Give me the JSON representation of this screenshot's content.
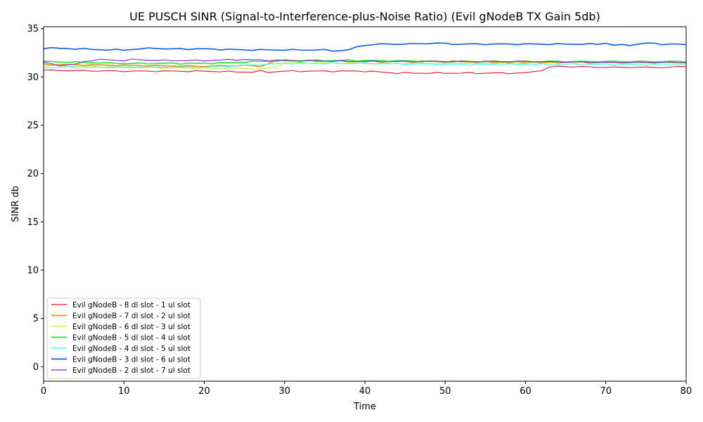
{
  "chart_data": {
    "type": "line",
    "title": "UE PUSCH SINR (Signal-to-Interference-plus-Noise Ratio) (Evil gNodeB TX Gain 5db)",
    "xlabel": "Time",
    "ylabel": "SINR db",
    "xlim": [
      0,
      80
    ],
    "ylim": [
      -1.5,
      35.2
    ],
    "x_ticks": [
      0,
      10,
      20,
      30,
      40,
      50,
      60,
      70,
      80
    ],
    "y_ticks": [
      0,
      5,
      10,
      15,
      20,
      25,
      30,
      35
    ],
    "grid": false,
    "legend_position": "lower-left",
    "series": [
      {
        "name": "Evil gNodeB - 8 dl slot - 1 ul slot",
        "color": "#e8112d",
        "x": [
          0,
          10,
          20,
          26,
          27,
          28,
          30,
          40,
          44,
          50,
          55,
          60,
          62,
          63,
          64,
          70,
          75,
          78,
          80
        ],
        "values": [
          30.7,
          30.6,
          30.6,
          30.5,
          30.6,
          30.5,
          30.6,
          30.6,
          30.4,
          30.4,
          30.4,
          30.4,
          30.7,
          31.0,
          31.1,
          31.0,
          31.0,
          31.0,
          31.1
        ]
      },
      {
        "name": "Evil gNodeB - 7 dl slot - 2 ul slot",
        "color": "#ff8800",
        "x": [
          0,
          10,
          20,
          25,
          27,
          29,
          30,
          40,
          50,
          60,
          70,
          80
        ],
        "values": [
          31.3,
          31.2,
          31.1,
          31.2,
          31.1,
          31.7,
          31.7,
          31.6,
          31.6,
          31.5,
          31.5,
          31.5
        ]
      },
      {
        "name": "Evil gNodeB - 6 dl slot - 3 ul slot",
        "color": "#aaff33",
        "x": [
          0,
          10,
          20,
          25,
          27,
          29,
          30,
          40,
          50,
          60,
          70,
          80
        ],
        "values": [
          31.2,
          31.0,
          30.9,
          30.9,
          30.8,
          31.0,
          31.5,
          31.4,
          31.4,
          31.4,
          31.6,
          31.5
        ]
      },
      {
        "name": "Evil gNodeB - 5 dl slot - 4 ul slot",
        "color": "#1ce830",
        "x": [
          0,
          10,
          20,
          30,
          40,
          50,
          60,
          70,
          80
        ],
        "values": [
          31.6,
          31.4,
          31.4,
          31.7,
          31.7,
          31.6,
          31.6,
          31.6,
          31.6
        ]
      },
      {
        "name": "Evil gNodeB - 4 dl slot - 5 ul slot",
        "color": "#33ffee",
        "x": [
          0,
          10,
          20,
          30,
          40,
          50,
          60,
          70,
          80
        ],
        "values": [
          31.0,
          31.0,
          31.0,
          31.4,
          31.4,
          31.3,
          31.3,
          31.3,
          31.3
        ]
      },
      {
        "name": "Evil gNodeB - 3 dl slot - 6 ul slot",
        "color": "#0b5ce6",
        "x": [
          0,
          5,
          8,
          10,
          14,
          15,
          20,
          25,
          30,
          35,
          36,
          38,
          39,
          40,
          42,
          45,
          49,
          51,
          55,
          60,
          65,
          69,
          70,
          71,
          73,
          75,
          77,
          79,
          80
        ],
        "values": [
          33.0,
          32.9,
          32.8,
          32.8,
          33.0,
          32.9,
          32.9,
          32.8,
          32.8,
          32.8,
          32.7,
          32.8,
          33.1,
          33.3,
          33.4,
          33.4,
          33.5,
          33.4,
          33.4,
          33.4,
          33.4,
          33.4,
          33.5,
          33.3,
          33.3,
          33.5,
          33.4,
          33.4,
          33.3
        ]
      },
      {
        "name": "Evil gNodeB - 2 dl slot - 7 ul slot",
        "color": "#8a1cf0",
        "x": [
          0,
          2,
          4,
          5,
          7,
          10,
          11,
          15,
          20,
          24,
          30,
          40,
          50,
          60,
          70,
          80
        ],
        "values": [
          31.5,
          31.2,
          31.3,
          31.6,
          31.8,
          31.7,
          31.8,
          31.7,
          31.7,
          31.8,
          31.7,
          31.6,
          31.6,
          31.6,
          31.5,
          31.5
        ]
      }
    ]
  }
}
